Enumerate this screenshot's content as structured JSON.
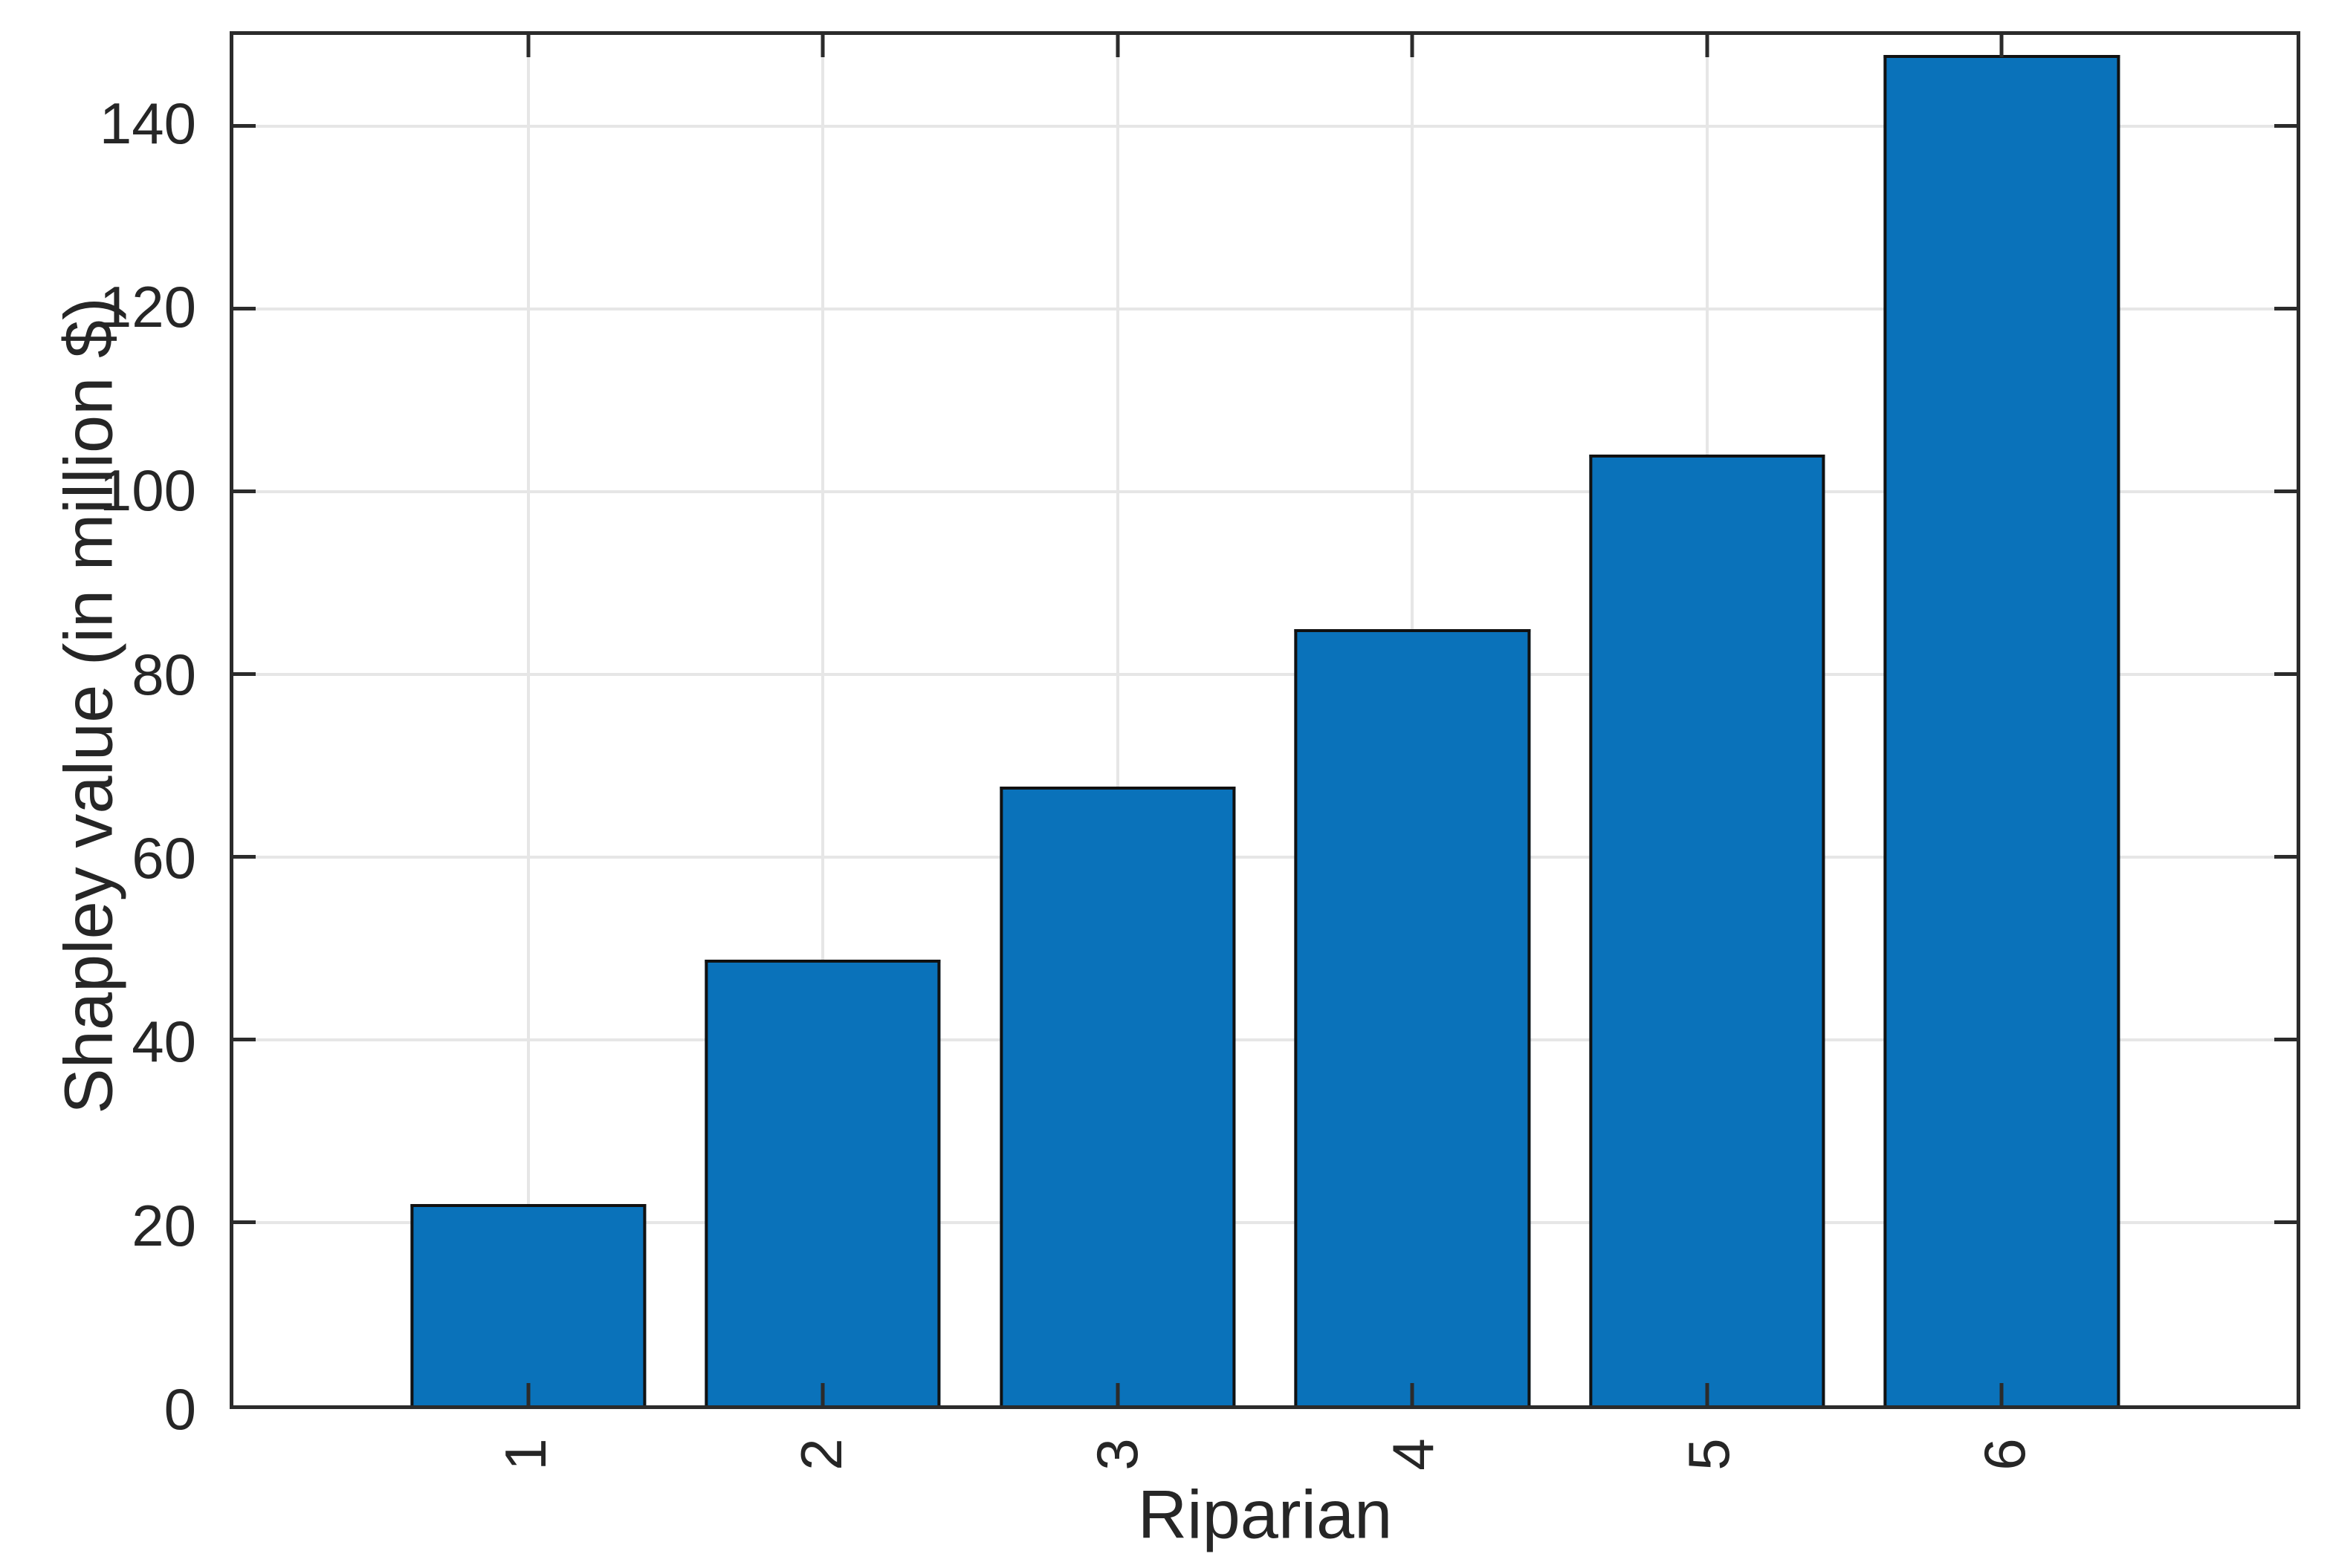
{
  "chart_data": {
    "type": "bar",
    "title": "",
    "xlabel": "Riparian",
    "ylabel": "Shapley value (in million $)",
    "categories": [
      "1",
      "2",
      "3",
      "4",
      "5",
      "6"
    ],
    "values": [
      22,
      48.8,
      67.7,
      85,
      104.1,
      147.8
    ],
    "ylim": [
      0,
      150
    ],
    "yticks": [
      0,
      20,
      40,
      60,
      80,
      100,
      120,
      140
    ],
    "xlim": [
      0,
      7
    ],
    "grid": true,
    "legend": "none",
    "x_tick_label_rotation_deg": 90,
    "bar_width_fraction": 0.8,
    "colors": {
      "bar_fill": "#0a72ba",
      "bar_edge": "#111111",
      "axis_frame": "#2b2b2b",
      "gridline": "#e6e6e6",
      "tick_mark": "#2b2b2b",
      "text": "#262626",
      "background": "#ffffff"
    }
  }
}
